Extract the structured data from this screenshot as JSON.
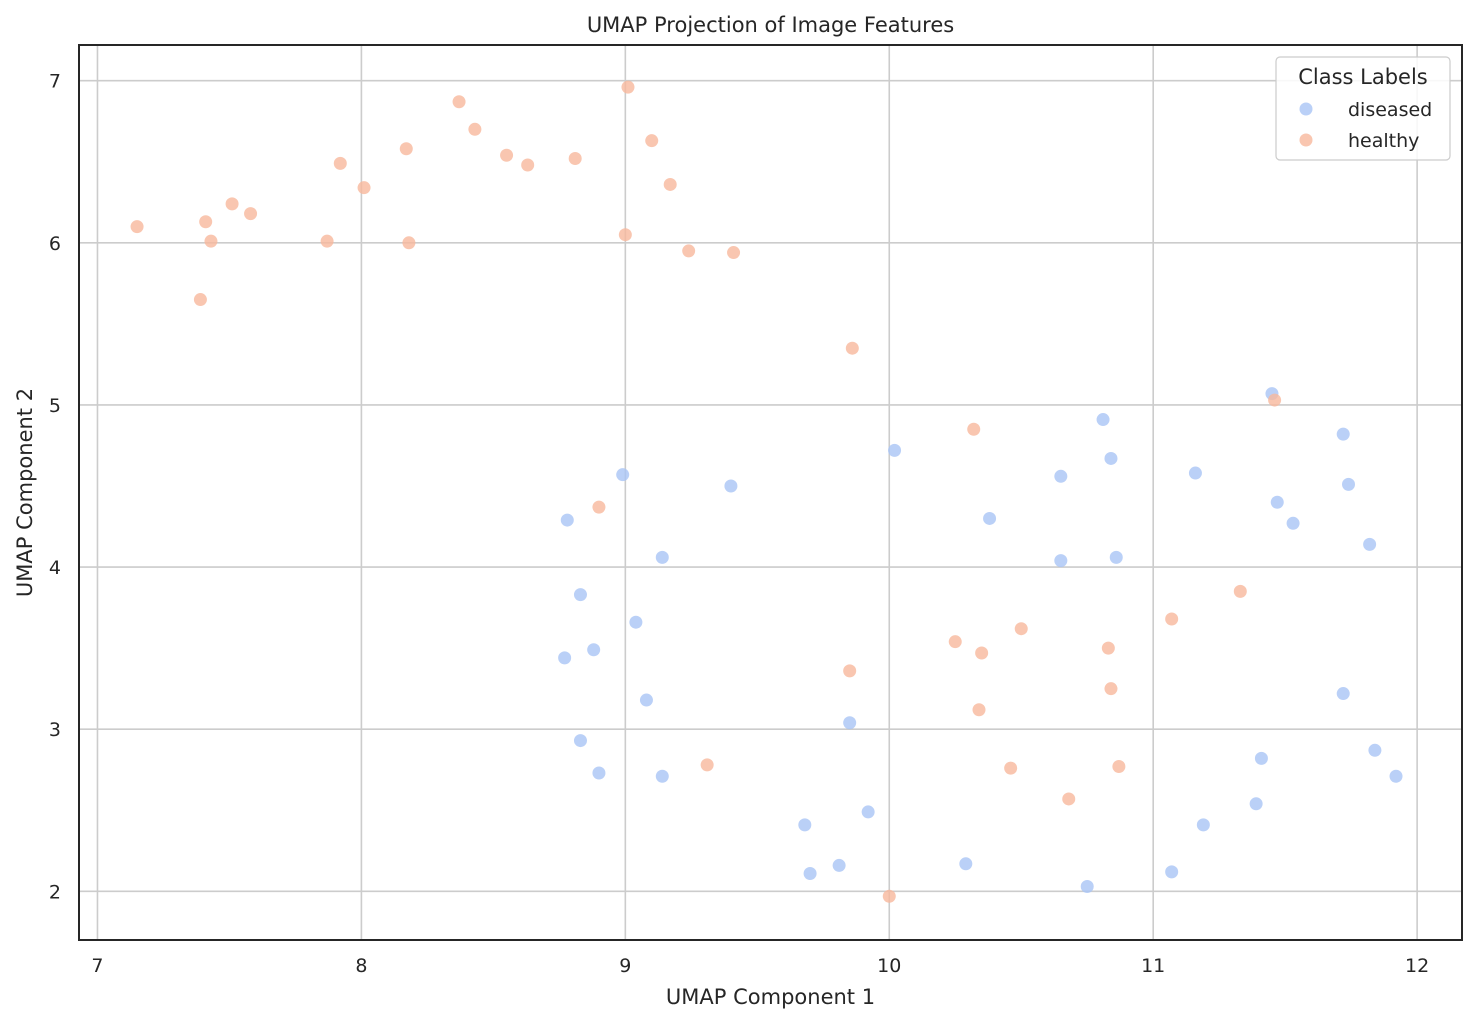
{
  "chart_data": {
    "type": "scatter",
    "title": "UMAP Projection of Image Features",
    "xlabel": "UMAP Component 1",
    "ylabel": "UMAP Component 2",
    "xlim": [
      6.93,
      12.17
    ],
    "ylim": [
      1.7,
      7.22
    ],
    "xticks": [
      7,
      8,
      9,
      10,
      11,
      12
    ],
    "yticks": [
      2,
      3,
      4,
      5,
      6,
      7
    ],
    "grid": true,
    "legend": {
      "title": "Class Labels",
      "position": "top-right"
    },
    "series": [
      {
        "name": "diseased",
        "color": "#a9c4f5",
        "points": [
          [
            11.45,
            5.07
          ],
          [
            10.81,
            4.91
          ],
          [
            11.72,
            4.82
          ],
          [
            10.02,
            4.72
          ],
          [
            10.84,
            4.67
          ],
          [
            8.99,
            4.57
          ],
          [
            11.16,
            4.58
          ],
          [
            10.65,
            4.56
          ],
          [
            11.74,
            4.51
          ],
          [
            9.4,
            4.5
          ],
          [
            11.47,
            4.4
          ],
          [
            10.38,
            4.3
          ],
          [
            8.78,
            4.29
          ],
          [
            11.53,
            4.27
          ],
          [
            11.82,
            4.14
          ],
          [
            9.14,
            4.06
          ],
          [
            10.86,
            4.06
          ],
          [
            10.65,
            4.04
          ],
          [
            8.83,
            3.83
          ],
          [
            9.04,
            3.66
          ],
          [
            8.88,
            3.49
          ],
          [
            8.77,
            3.44
          ],
          [
            11.72,
            3.22
          ],
          [
            9.08,
            3.18
          ],
          [
            9.85,
            3.04
          ],
          [
            8.83,
            2.93
          ],
          [
            11.84,
            2.87
          ],
          [
            11.41,
            2.82
          ],
          [
            8.9,
            2.73
          ],
          [
            9.14,
            2.71
          ],
          [
            11.92,
            2.71
          ],
          [
            11.39,
            2.54
          ],
          [
            9.92,
            2.49
          ],
          [
            9.68,
            2.41
          ],
          [
            11.19,
            2.41
          ],
          [
            10.29,
            2.17
          ],
          [
            9.81,
            2.16
          ],
          [
            9.7,
            2.11
          ],
          [
            11.07,
            2.12
          ],
          [
            10.75,
            2.03
          ]
        ]
      },
      {
        "name": "healthy",
        "color": "#f7b89c",
        "points": [
          [
            9.01,
            6.96
          ],
          [
            8.37,
            6.87
          ],
          [
            8.43,
            6.7
          ],
          [
            9.1,
            6.63
          ],
          [
            8.17,
            6.58
          ],
          [
            8.55,
            6.54
          ],
          [
            8.81,
            6.52
          ],
          [
            7.92,
            6.49
          ],
          [
            8.63,
            6.48
          ],
          [
            9.17,
            6.36
          ],
          [
            8.01,
            6.34
          ],
          [
            7.51,
            6.24
          ],
          [
            7.58,
            6.18
          ],
          [
            7.41,
            6.13
          ],
          [
            7.15,
            6.1
          ],
          [
            9.0,
            6.05
          ],
          [
            7.43,
            6.01
          ],
          [
            7.87,
            6.01
          ],
          [
            8.18,
            6.0
          ],
          [
            9.24,
            5.95
          ],
          [
            9.41,
            5.94
          ],
          [
            7.39,
            5.65
          ],
          [
            9.86,
            5.35
          ],
          [
            11.46,
            5.03
          ],
          [
            10.32,
            4.85
          ],
          [
            8.9,
            4.37
          ],
          [
            11.33,
            3.85
          ],
          [
            11.07,
            3.68
          ],
          [
            10.5,
            3.62
          ],
          [
            10.25,
            3.54
          ],
          [
            10.83,
            3.5
          ],
          [
            10.35,
            3.47
          ],
          [
            9.85,
            3.36
          ],
          [
            10.84,
            3.25
          ],
          [
            10.34,
            3.12
          ],
          [
            9.31,
            2.78
          ],
          [
            10.87,
            2.77
          ],
          [
            10.46,
            2.76
          ],
          [
            10.68,
            2.57
          ],
          [
            10.0,
            1.97
          ]
        ]
      }
    ]
  }
}
